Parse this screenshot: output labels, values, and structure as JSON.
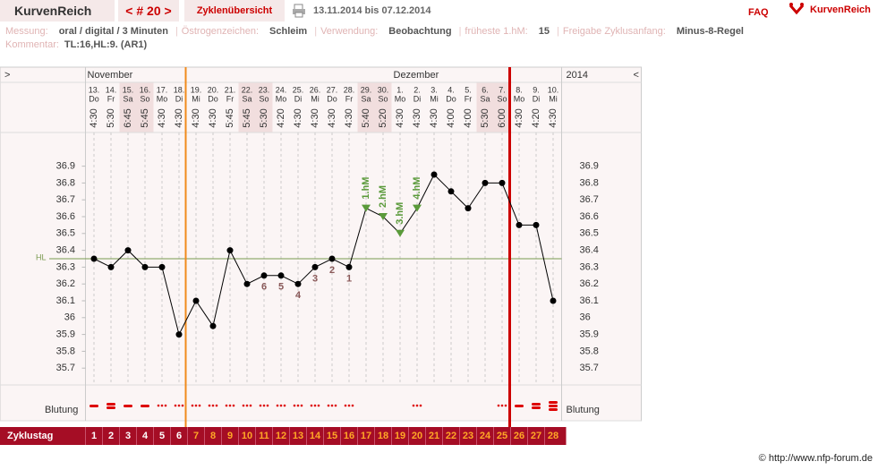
{
  "header": {
    "title": "KurvenReich",
    "cycle_nav": "< # 20 >",
    "overview": "Zyklenübersicht",
    "period": "13.11.2014 bis 07.12.2014",
    "faq": "FAQ",
    "logo": "KurvenReich"
  },
  "info": {
    "items": [
      {
        "label": "Messung:",
        "value": "oral / digital / 3 Minuten"
      },
      {
        "label": "Östrogenzeichen:",
        "value": "Schleim"
      },
      {
        "label": "Verwendung:",
        "value": "Beobachtung"
      },
      {
        "label": "früheste 1.hM:",
        "value": "15"
      },
      {
        "label": "Freigabe Zyklusanfang:",
        "value": "Minus-8-Regel"
      }
    ],
    "comment_label": "Kommentar:",
    "comment": "TL:16,HL:9. (AR1)"
  },
  "chart_data": {
    "type": "line",
    "nav_left": ">",
    "nav_right": "<",
    "year": "2014",
    "months": [
      "November",
      null,
      null,
      null,
      null,
      null,
      null,
      null,
      null,
      null,
      null,
      null,
      null,
      null,
      null,
      null,
      null,
      null,
      "Dezember",
      null,
      null,
      null,
      null,
      null,
      null,
      null,
      null,
      null
    ],
    "categories": [
      "13.",
      "14.",
      "15.",
      "16.",
      "17.",
      "18.",
      "19.",
      "20.",
      "21.",
      "22.",
      "23.",
      "24.",
      "25.",
      "26.",
      "27.",
      "28.",
      "29.",
      "30.",
      "1.",
      "2.",
      "3.",
      "4.",
      "5.",
      "6.",
      "7.",
      "8.",
      "9.",
      "10."
    ],
    "weekdays": [
      "Do",
      "Fr",
      "Sa",
      "So",
      "Mo",
      "Di",
      "Mi",
      "Do",
      "Fr",
      "Sa",
      "So",
      "Mo",
      "Di",
      "Mi",
      "Do",
      "Fr",
      "Sa",
      "So",
      "Mo",
      "Di",
      "Mi",
      "Do",
      "Fr",
      "Sa",
      "So",
      "Mo",
      "Di",
      "Mi"
    ],
    "times": [
      "4:30",
      "5:30",
      "6:45",
      "5:45",
      "4:30",
      "4:30",
      "4:30",
      "4:30",
      "5:45",
      "5:45",
      "5:30",
      "4:20",
      "4:30",
      "4:30",
      "4:30",
      "4:30",
      "5:40",
      "5:20",
      "4:30",
      "4:30",
      "4:30",
      "4:00",
      "4:00",
      "5:30",
      "6:00",
      "4:30",
      "4:20",
      "4:30"
    ],
    "values": [
      36.35,
      36.3,
      36.4,
      36.3,
      36.3,
      35.9,
      36.1,
      35.95,
      36.4,
      36.2,
      36.25,
      36.25,
      36.2,
      36.3,
      36.35,
      36.3,
      36.65,
      36.6,
      36.5,
      36.65,
      36.85,
      36.75,
      36.65,
      36.8,
      36.8,
      36.55,
      36.55,
      36.1
    ],
    "point_labels": [
      null,
      null,
      null,
      null,
      null,
      null,
      null,
      null,
      null,
      null,
      6,
      5,
      4,
      3,
      2,
      1,
      null,
      null,
      null,
      null,
      null,
      null,
      null,
      null,
      null,
      null,
      null,
      null
    ],
    "markers": [
      null,
      null,
      null,
      null,
      null,
      null,
      null,
      null,
      null,
      null,
      null,
      null,
      null,
      null,
      null,
      null,
      "1.hM",
      "2.hM",
      "3.hM",
      "4.hM",
      null,
      null,
      null,
      null,
      null,
      null,
      null,
      null
    ],
    "color": "#000000",
    "marker_color": "#5a9a3a",
    "ylim": [
      35.6,
      37.1
    ],
    "yticks": [
      35.7,
      35.8,
      35.9,
      36,
      36.1,
      36.2,
      36.3,
      36.4,
      36.5,
      36.6,
      36.7,
      36.8,
      36.9
    ],
    "cover_line": 36.35,
    "cover_line_label": "HL",
    "bleeding_label": "Blutung",
    "cycle_label": "Zyklustag",
    "cycle_days": [
      1,
      2,
      3,
      4,
      5,
      6,
      7,
      8,
      9,
      10,
      11,
      12,
      13,
      14,
      15,
      16,
      17,
      18,
      19,
      20,
      21,
      22,
      23,
      24,
      25,
      26,
      27,
      28
    ]
  },
  "footer": "© http://www.nfp-forum.de"
}
